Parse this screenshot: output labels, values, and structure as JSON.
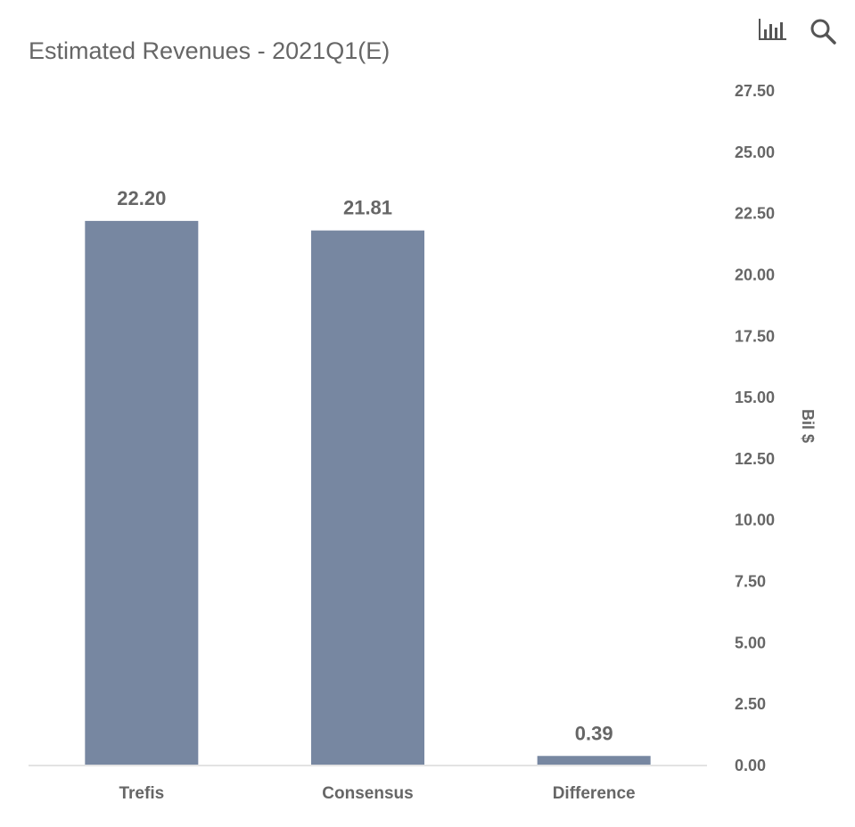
{
  "chart_data": {
    "type": "bar",
    "title": "Estimated Revenues - 2021Q1(E)",
    "categories": [
      "Trefis",
      "Consensus",
      "Difference"
    ],
    "values": [
      22.2,
      21.81,
      0.39
    ],
    "data_labels": [
      "22.20",
      "21.81",
      "0.39"
    ],
    "xlabel": "",
    "ylabel": "Bil $",
    "ylim": [
      0,
      27.5
    ],
    "yticks": [
      "0.00",
      "2.50",
      "5.00",
      "7.50",
      "10.00",
      "12.50",
      "15.00",
      "17.50",
      "20.00",
      "22.50",
      "25.00",
      "27.50"
    ],
    "y_axis_position": "right",
    "grid": false,
    "legend": "none",
    "bar_color": "#7787a1",
    "axis_line_color": "#e3e3e3",
    "text_color": "#666666"
  },
  "toolbar": {
    "chart_icon": "bar-chart-icon",
    "search_icon": "search-icon"
  }
}
